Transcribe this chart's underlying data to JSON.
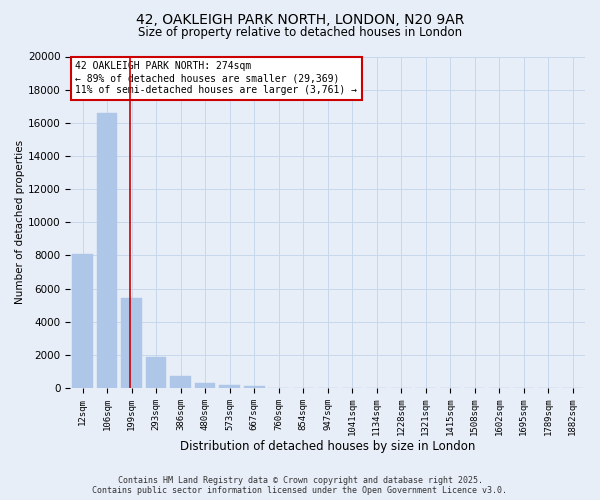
{
  "title_line1": "42, OAKLEIGH PARK NORTH, LONDON, N20 9AR",
  "title_line2": "Size of property relative to detached houses in London",
  "bar_labels": [
    "12sqm",
    "106sqm",
    "199sqm",
    "293sqm",
    "386sqm",
    "480sqm",
    "573sqm",
    "667sqm",
    "760sqm",
    "854sqm",
    "947sqm",
    "1041sqm",
    "1134sqm",
    "1228sqm",
    "1321sqm",
    "1415sqm",
    "1508sqm",
    "1602sqm",
    "1695sqm",
    "1789sqm",
    "1882sqm"
  ],
  "bar_values": [
    8100,
    16600,
    5400,
    1850,
    750,
    280,
    170,
    120,
    0,
    0,
    0,
    0,
    0,
    0,
    0,
    0,
    0,
    0,
    0,
    0,
    0
  ],
  "bar_color": "#aec6e8",
  "bar_edge_color": "#aec6e8",
  "ylabel": "Number of detached properties",
  "xlabel": "Distribution of detached houses by size in London",
  "ylim": [
    0,
    20000
  ],
  "yticks": [
    0,
    2000,
    4000,
    6000,
    8000,
    10000,
    12000,
    14000,
    16000,
    18000,
    20000
  ],
  "property_line_x": 1.925,
  "property_line_color": "#cc0000",
  "annotation_text": "42 OAKLEIGH PARK NORTH: 274sqm\n← 89% of detached houses are smaller (29,369)\n11% of semi-detached houses are larger (3,761) →",
  "annotation_box_color": "#ffffff",
  "annotation_box_edgecolor": "#cc0000",
  "grid_color": "#c8d8ec",
  "background_color": "#e8eef8",
  "footer_line1": "Contains HM Land Registry data © Crown copyright and database right 2025.",
  "footer_line2": "Contains public sector information licensed under the Open Government Licence v3.0."
}
